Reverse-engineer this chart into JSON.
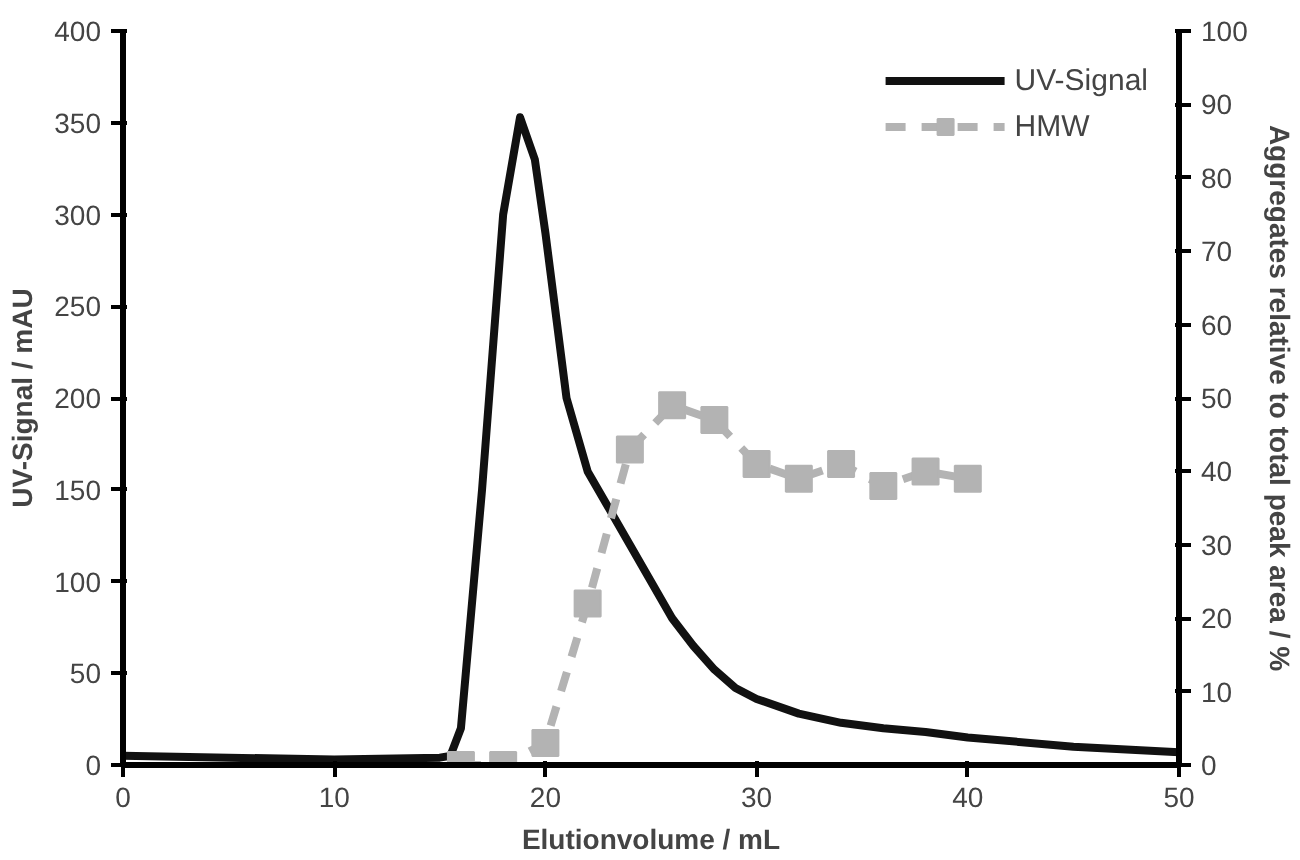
{
  "chart_data": {
    "type": "line",
    "xlabel": "Elutionvolume / mL",
    "ylabel": "UV-Signal / mAU",
    "y2label": "Aggregates relative to total peak area / %",
    "xlim": [
      0,
      50
    ],
    "xticks": [
      0,
      10,
      20,
      30,
      40,
      50
    ],
    "ylim": [
      0,
      400
    ],
    "yticks": [
      0,
      50,
      100,
      150,
      200,
      250,
      300,
      350,
      400
    ],
    "y2lim": [
      0,
      100
    ],
    "y2ticks": [
      0,
      10,
      20,
      30,
      40,
      50,
      60,
      70,
      80,
      90,
      100
    ],
    "grid": false,
    "legend": "top right",
    "series": [
      {
        "name": "UV-Signal",
        "color": "#111111",
        "marker": "none",
        "line_style": "solid",
        "x": [
          0,
          5,
          10,
          15,
          15.5,
          16,
          17,
          18,
          18.8,
          19.5,
          20,
          21,
          22,
          23,
          24,
          25,
          26,
          27,
          28,
          29,
          30,
          32,
          34,
          36,
          38,
          40,
          45,
          50
        ],
        "values": [
          5,
          4,
          3,
          4,
          5,
          20,
          150,
          300,
          353,
          330,
          290,
          200,
          160,
          140,
          120,
          100,
          80,
          65,
          52,
          42,
          36,
          28,
          23,
          20,
          18,
          15,
          10,
          7
        ]
      },
      {
        "name": "HMW",
        "color": "#b3b3b3",
        "marker": "square",
        "line_style": "dashed",
        "axis": "y2",
        "x": [
          16,
          18,
          20,
          22,
          24,
          26,
          28,
          30,
          32,
          34,
          36,
          38,
          40
        ],
        "values": [
          0,
          0,
          3,
          22,
          43,
          49,
          47,
          41,
          39,
          41,
          38,
          40,
          39
        ]
      }
    ]
  }
}
